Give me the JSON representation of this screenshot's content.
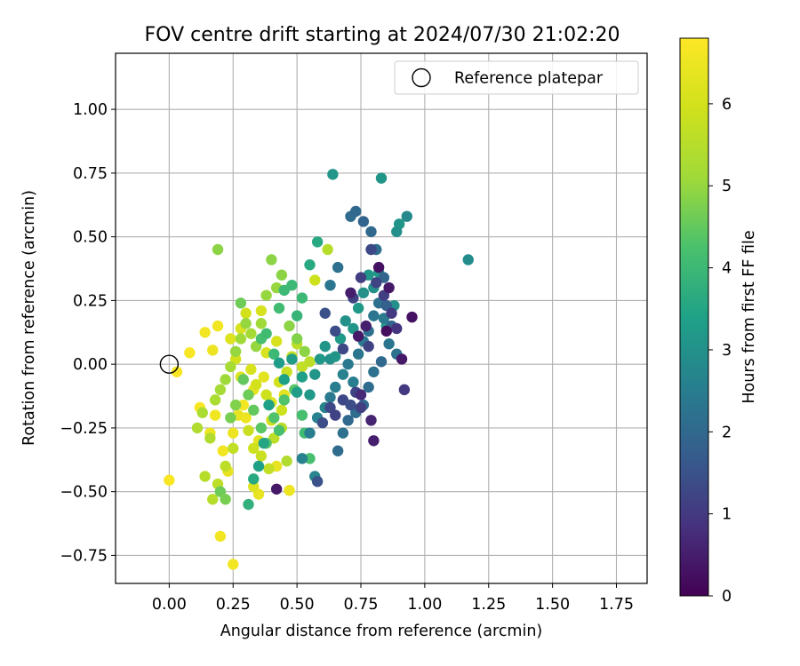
{
  "chart_data": {
    "type": "scatter",
    "title": "FOV centre drift starting at 2024/07/30 21:02:20",
    "xlabel": "Angular distance from reference (arcmin)",
    "ylabel": "Rotation from reference (arcmin)",
    "xlim": [
      -0.21,
      1.87
    ],
    "ylim": [
      -0.86,
      1.22
    ],
    "xticks": [
      0.0,
      0.25,
      0.5,
      0.75,
      1.0,
      1.25,
      1.5,
      1.75
    ],
    "xtick_labels": [
      "0.00",
      "0.25",
      "0.50",
      "0.75",
      "1.00",
      "1.25",
      "1.50",
      "1.75"
    ],
    "yticks": [
      -0.75,
      -0.5,
      -0.25,
      0.0,
      0.25,
      0.5,
      0.75,
      1.0
    ],
    "ytick_labels": [
      "−0.75",
      "−0.50",
      "−0.25",
      "0.00",
      "0.25",
      "0.50",
      "0.75",
      "1.00"
    ],
    "grid": true,
    "legend": {
      "position": "upper right",
      "entries": [
        "Reference platepar"
      ]
    },
    "reference_point": {
      "label": "Reference platepar",
      "x": 0.0,
      "y": 0.0,
      "marker": "open-circle"
    },
    "colorbar": {
      "label": "Hours from first FF file",
      "colormap": "viridis",
      "range": [
        0,
        6.8
      ],
      "ticks": [
        0,
        1,
        2,
        3,
        4,
        5,
        6
      ],
      "tick_labels": [
        "0",
        "1",
        "2",
        "3",
        "4",
        "5",
        "6"
      ]
    },
    "point_columns": [
      "x",
      "y",
      "hours"
    ],
    "points": [
      [
        0.03,
        -0.03,
        6.7
      ],
      [
        0.08,
        0.045,
        6.7
      ],
      [
        0.14,
        0.125,
        6.6
      ],
      [
        0.17,
        0.055,
        6.5
      ],
      [
        0.19,
        0.15,
        6.6
      ],
      [
        0.0,
        -0.455,
        6.7
      ],
      [
        0.2,
        -0.675,
        6.6
      ],
      [
        0.25,
        -0.785,
        6.6
      ],
      [
        0.12,
        -0.17,
        6.7
      ],
      [
        0.16,
        -0.27,
        6.5
      ],
      [
        0.18,
        -0.2,
        6.6
      ],
      [
        0.21,
        -0.34,
        6.6
      ],
      [
        0.23,
        -0.42,
        6.4
      ],
      [
        0.25,
        -0.27,
        6.5
      ],
      [
        0.27,
        -0.2,
        6.4
      ],
      [
        0.29,
        -0.16,
        6.6
      ],
      [
        0.3,
        -0.21,
        6.5
      ],
      [
        0.33,
        -0.1,
        6.4
      ],
      [
        0.35,
        -0.3,
        6.3
      ],
      [
        0.37,
        -0.05,
        6.3
      ],
      [
        0.4,
        -0.15,
        6.2
      ],
      [
        0.42,
        -0.4,
        6.4
      ],
      [
        0.45,
        -0.12,
        6.3
      ],
      [
        0.47,
        -0.495,
        6.5
      ],
      [
        0.35,
        -0.51,
        6.4
      ],
      [
        0.33,
        -0.48,
        6.2
      ],
      [
        0.38,
        0.045,
        6.1
      ],
      [
        0.42,
        0.09,
        6.1
      ],
      [
        0.28,
        0.14,
        6.1
      ],
      [
        0.3,
        0.2,
        6.0
      ],
      [
        0.36,
        0.21,
        6.1
      ],
      [
        0.24,
        0.1,
        6.2
      ],
      [
        0.26,
        0.02,
        6.0
      ],
      [
        0.28,
        -0.05,
        6.2
      ],
      [
        0.32,
        -0.02,
        6.1
      ],
      [
        0.34,
        -0.08,
        6.0
      ],
      [
        0.38,
        -0.12,
        5.9
      ],
      [
        0.4,
        -0.22,
        6.0
      ],
      [
        0.43,
        -0.07,
        6.0
      ],
      [
        0.44,
        -0.18,
        5.9
      ],
      [
        0.46,
        -0.03,
        5.8
      ],
      [
        0.48,
        0.03,
        5.7
      ],
      [
        0.5,
        0.08,
        5.6
      ],
      [
        0.52,
        -0.01,
        5.7
      ],
      [
        0.55,
        0.01,
        5.6
      ],
      [
        0.57,
        0.33,
        5.9
      ],
      [
        0.62,
        0.45,
        5.5
      ],
      [
        0.31,
        -0.26,
        5.8
      ],
      [
        0.33,
        -0.33,
        5.9
      ],
      [
        0.36,
        -0.36,
        5.8
      ],
      [
        0.39,
        -0.41,
        5.7
      ],
      [
        0.41,
        -0.29,
        5.6
      ],
      [
        0.44,
        -0.25,
        5.5
      ],
      [
        0.46,
        -0.38,
        5.4
      ],
      [
        0.25,
        -0.33,
        5.7
      ],
      [
        0.22,
        -0.4,
        5.6
      ],
      [
        0.19,
        -0.47,
        5.6
      ],
      [
        0.17,
        -0.53,
        5.5
      ],
      [
        0.14,
        -0.44,
        5.5
      ],
      [
        0.11,
        -0.25,
        5.4
      ],
      [
        0.13,
        -0.19,
        5.3
      ],
      [
        0.16,
        -0.29,
        5.4
      ],
      [
        0.18,
        -0.14,
        5.3
      ],
      [
        0.2,
        -0.1,
        5.2
      ],
      [
        0.22,
        -0.06,
        5.1
      ],
      [
        0.24,
        -0.01,
        5.2
      ],
      [
        0.26,
        0.05,
        5.0
      ],
      [
        0.28,
        0.1,
        5.1
      ],
      [
        0.3,
        0.16,
        5.0
      ],
      [
        0.32,
        0.12,
        5.2
      ],
      [
        0.34,
        0.07,
        5.0
      ],
      [
        0.36,
        0.16,
        5.1
      ],
      [
        0.38,
        0.27,
        5.0
      ],
      [
        0.4,
        0.41,
        4.9
      ],
      [
        0.42,
        0.3,
        5.0
      ],
      [
        0.44,
        0.35,
        4.9
      ],
      [
        0.47,
        0.15,
        4.9
      ],
      [
        0.5,
        0.1,
        4.8
      ],
      [
        0.53,
        0.05,
        4.9
      ],
      [
        0.19,
        0.45,
        4.9
      ],
      [
        0.28,
        0.24,
        4.6
      ],
      [
        0.2,
        -0.5,
        4.6
      ],
      [
        0.22,
        -0.53,
        4.7
      ],
      [
        0.24,
        -0.21,
        4.7
      ],
      [
        0.26,
        -0.16,
        4.8
      ],
      [
        0.29,
        -0.06,
        4.5
      ],
      [
        0.31,
        -0.12,
        4.6
      ],
      [
        0.33,
        -0.18,
        4.5
      ],
      [
        0.36,
        -0.25,
        4.4
      ],
      [
        0.38,
        -0.31,
        4.4
      ],
      [
        0.41,
        -0.21,
        4.3
      ],
      [
        0.43,
        -0.26,
        4.2
      ],
      [
        0.45,
        -0.14,
        4.3
      ],
      [
        0.49,
        -0.1,
        4.4
      ],
      [
        0.52,
        -0.2,
        4.2
      ],
      [
        0.53,
        -0.27,
        4.1
      ],
      [
        0.55,
        -0.37,
        4.2
      ],
      [
        0.36,
        0.1,
        4.2
      ],
      [
        0.38,
        0.12,
        4.1
      ],
      [
        0.41,
        0.04,
        4.0
      ],
      [
        0.43,
        0.22,
        4.1
      ],
      [
        0.45,
        0.29,
        4.0
      ],
      [
        0.48,
        0.31,
        4.0
      ],
      [
        0.5,
        0.19,
        3.9
      ],
      [
        0.52,
        0.26,
        4.0
      ],
      [
        0.55,
        0.39,
        3.6
      ],
      [
        0.58,
        0.48,
        3.6
      ],
      [
        0.31,
        -0.55,
        3.8
      ],
      [
        0.33,
        -0.45,
        3.6
      ],
      [
        0.35,
        -0.4,
        3.4
      ],
      [
        0.37,
        -0.31,
        3.5
      ],
      [
        0.39,
        -0.16,
        3.4
      ],
      [
        0.43,
        0.005,
        3.3
      ],
      [
        0.45,
        -0.06,
        3.4
      ],
      [
        0.48,
        0.02,
        3.3
      ],
      [
        0.5,
        -0.11,
        3.3
      ],
      [
        0.52,
        -0.05,
        3.4
      ],
      [
        0.55,
        -0.12,
        3.2
      ],
      [
        0.57,
        -0.04,
        3.1
      ],
      [
        0.59,
        0.02,
        3.2
      ],
      [
        0.61,
        0.07,
        3.1
      ],
      [
        0.63,
        0.02,
        3.0
      ],
      [
        0.65,
        0.03,
        3.1
      ],
      [
        0.67,
        0.1,
        3.2
      ],
      [
        0.69,
        0.17,
        3.0
      ],
      [
        0.72,
        0.14,
        3.1
      ],
      [
        0.74,
        0.22,
        3.2
      ],
      [
        0.76,
        0.28,
        3.0
      ],
      [
        0.78,
        0.35,
        3.1
      ],
      [
        0.8,
        0.3,
        3.0
      ],
      [
        0.82,
        0.36,
        3.1
      ],
      [
        0.85,
        0.15,
        3.2
      ],
      [
        0.88,
        0.23,
        3.0
      ],
      [
        0.9,
        0.55,
        3.1
      ],
      [
        0.83,
        0.73,
        3.1
      ],
      [
        0.64,
        0.745,
        3.1
      ],
      [
        1.17,
        0.41,
        2.9
      ],
      [
        0.89,
        0.52,
        3.0
      ],
      [
        0.93,
        0.58,
        2.8
      ],
      [
        0.57,
        -0.44,
        2.7
      ],
      [
        0.52,
        -0.37,
        2.6
      ],
      [
        0.55,
        -0.27,
        2.5
      ],
      [
        0.58,
        -0.21,
        2.6
      ],
      [
        0.61,
        -0.17,
        2.7
      ],
      [
        0.63,
        -0.13,
        2.4
      ],
      [
        0.65,
        -0.09,
        2.5
      ],
      [
        0.68,
        -0.04,
        2.6
      ],
      [
        0.7,
        0.0,
        2.4
      ],
      [
        0.72,
        -0.07,
        2.5
      ],
      [
        0.74,
        0.04,
        2.3
      ],
      [
        0.76,
        0.09,
        2.4
      ],
      [
        0.78,
        0.13,
        2.2
      ],
      [
        0.8,
        0.19,
        2.3
      ],
      [
        0.82,
        0.24,
        2.2
      ],
      [
        0.84,
        0.18,
        2.4
      ],
      [
        0.86,
        0.08,
        2.3
      ],
      [
        0.89,
        0.04,
        2.2
      ],
      [
        0.66,
        -0.34,
        2.1
      ],
      [
        0.68,
        -0.27,
        2.2
      ],
      [
        0.7,
        -0.22,
        2.0
      ],
      [
        0.73,
        -0.19,
        2.1
      ],
      [
        0.76,
        -0.16,
        2.0
      ],
      [
        0.78,
        -0.09,
        2.1
      ],
      [
        0.8,
        -0.03,
        2.2
      ],
      [
        0.83,
        0.01,
        2.0
      ],
      [
        0.63,
        0.31,
        2.3
      ],
      [
        0.66,
        0.38,
        2.2
      ],
      [
        0.71,
        0.58,
        2.1
      ],
      [
        0.73,
        0.6,
        2.0
      ],
      [
        0.76,
        0.56,
        1.9
      ],
      [
        0.79,
        0.52,
        2.0
      ],
      [
        0.81,
        0.45,
        2.1
      ],
      [
        0.84,
        0.34,
        1.9
      ],
      [
        0.85,
        0.23,
        1.8
      ],
      [
        0.87,
        0.15,
        1.9
      ],
      [
        0.58,
        -0.46,
        1.5
      ],
      [
        0.6,
        -0.23,
        1.4
      ],
      [
        0.63,
        -0.17,
        1.3
      ],
      [
        0.65,
        -0.2,
        1.2
      ],
      [
        0.68,
        -0.14,
        1.3
      ],
      [
        0.71,
        -0.16,
        1.4
      ],
      [
        0.73,
        -0.11,
        1.2
      ],
      [
        0.75,
        -0.17,
        1.1
      ],
      [
        0.78,
        0.07,
        1.2
      ],
      [
        0.61,
        0.2,
        1.5
      ],
      [
        0.65,
        0.13,
        1.4
      ],
      [
        0.68,
        0.06,
        1.3
      ],
      [
        0.72,
        0.26,
        1.2
      ],
      [
        0.75,
        0.34,
        1.1
      ],
      [
        0.79,
        0.45,
        1.3
      ],
      [
        0.81,
        0.32,
        1.2
      ],
      [
        0.84,
        0.27,
        1.1
      ],
      [
        0.87,
        0.2,
        1.0
      ],
      [
        0.89,
        0.14,
        0.9
      ],
      [
        0.92,
        -0.1,
        1.0
      ],
      [
        0.8,
        -0.3,
        0.5
      ],
      [
        0.79,
        -0.22,
        0.6
      ],
      [
        0.75,
        -0.12,
        0.7
      ],
      [
        0.74,
        0.11,
        0.4
      ],
      [
        0.77,
        0.15,
        0.5
      ],
      [
        0.82,
        0.38,
        0.3
      ],
      [
        0.86,
        0.3,
        0.4
      ],
      [
        0.95,
        0.185,
        0.3
      ],
      [
        0.91,
        0.02,
        0.4
      ],
      [
        0.42,
        -0.49,
        0.4
      ],
      [
        0.71,
        0.28,
        0.5
      ],
      [
        0.85,
        0.13,
        0.2
      ]
    ]
  }
}
